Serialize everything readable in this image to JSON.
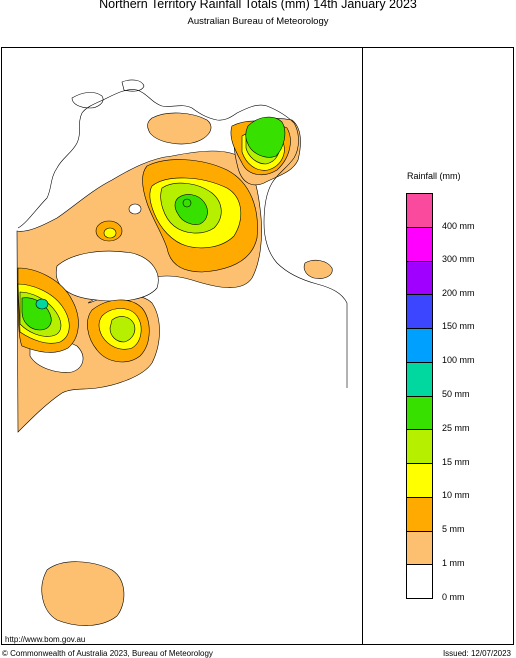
{
  "header": {
    "title": "Northern Territory Rainfall Totals (mm) 14th January 2023",
    "subtitle": "Australian Bureau of Meteorology"
  },
  "legend": {
    "title": "Rainfall (mm)",
    "items": [
      {
        "label": "400 mm",
        "color": "#fa4a9e"
      },
      {
        "label": "300 mm",
        "color": "#ff00ff"
      },
      {
        "label": "200 mm",
        "color": "#a000ff"
      },
      {
        "label": "150 mm",
        "color": "#3c46ff"
      },
      {
        "label": "100 mm",
        "color": "#00a0ff"
      },
      {
        "label": "50 mm",
        "color": "#00d8a0"
      },
      {
        "label": "25 mm",
        "color": "#38e000"
      },
      {
        "label": "15 mm",
        "color": "#b6f000"
      },
      {
        "label": "10 mm",
        "color": "#ffff00"
      },
      {
        "label": "5 mm",
        "color": "#ffaa00"
      },
      {
        "label": "1 mm",
        "color": "#fcc070"
      },
      {
        "label": "0 mm",
        "color": "#ffffff"
      }
    ]
  },
  "footer": {
    "url": "http://www.bom.gov.au",
    "copyright": "© Commonwealth of Australia 2023, Bureau of Meteorology",
    "issued": "Issued: 12/07/2023"
  }
}
